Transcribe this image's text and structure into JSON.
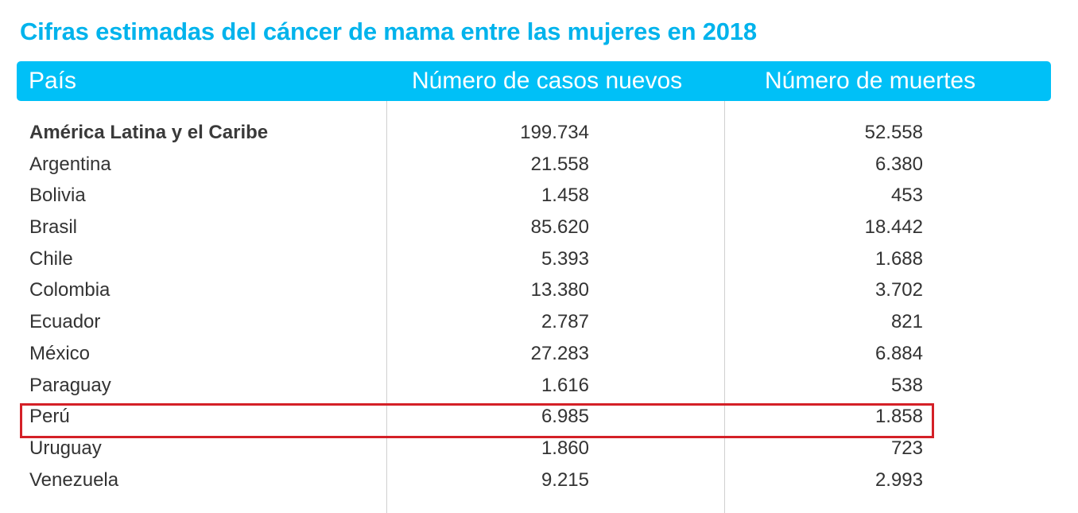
{
  "title": "Cifras estimadas del cáncer de mama entre las mujeres en 2018",
  "header": {
    "country": "País",
    "cases": "Número de casos nuevos",
    "deaths": "Número de muertes"
  },
  "rows": [
    {
      "country": "América Latina y el Caribe",
      "cases": "199.734",
      "deaths": "52.558"
    },
    {
      "country": "Argentina",
      "cases": "21.558",
      "deaths": "6.380"
    },
    {
      "country": "Bolivia",
      "cases": "1.458",
      "deaths": "453"
    },
    {
      "country": "Brasil",
      "cases": "85.620",
      "deaths": "18.442"
    },
    {
      "country": "Chile",
      "cases": "5.393",
      "deaths": "1.688"
    },
    {
      "country": "Colombia",
      "cases": "13.380",
      "deaths": "3.702"
    },
    {
      "country": "Ecuador",
      "cases": "2.787",
      "deaths": "821"
    },
    {
      "country": "México",
      "cases": "27.283",
      "deaths": "6.884"
    },
    {
      "country": "Paraguay",
      "cases": "1.616",
      "deaths": "538"
    },
    {
      "country": "Perú",
      "cases": "6.985",
      "deaths": "1.858"
    },
    {
      "country": "Uruguay",
      "cases": "1.860",
      "deaths": "723"
    },
    {
      "country": "Venezuela",
      "cases": "9.215",
      "deaths": "2.993"
    }
  ],
  "colors": {
    "accent": "#00c0f7",
    "title": "#00b3ec",
    "highlight": "#d42027"
  }
}
